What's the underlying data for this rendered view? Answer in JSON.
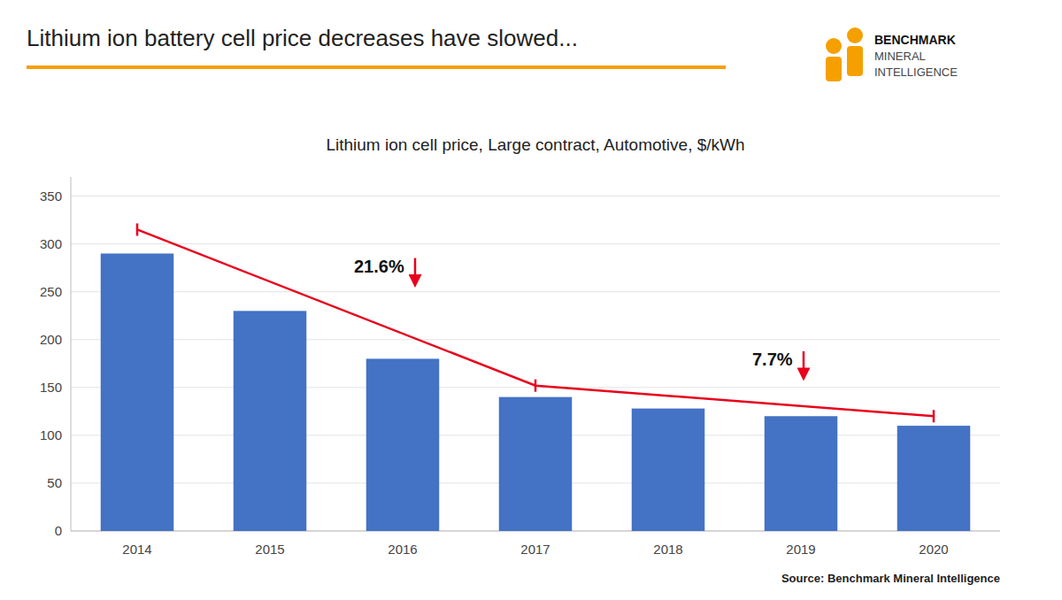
{
  "chart_data": {
    "type": "bar",
    "title": "Lithium ion battery cell price decreases have slowed...",
    "subtitle": "Lithium ion cell price, Large contract, Automotive, $/kWh",
    "source": "Source: Benchmark Mineral Intelligence",
    "logo_text": [
      "BENCHMARK",
      "MINERAL",
      "INTELLIGENCE"
    ],
    "logo_color": "#F5A000",
    "categories": [
      "2014",
      "2015",
      "2016",
      "2017",
      "2018",
      "2019",
      "2020"
    ],
    "values": [
      290,
      230,
      180,
      140,
      128,
      120,
      110
    ],
    "color": "#4472C4",
    "line": {
      "categories": [
        "2014",
        "2017",
        "2020"
      ],
      "values": [
        315,
        152,
        120
      ],
      "color": "#E8001C"
    },
    "annotations": [
      {
        "text": "21.6%"
      },
      {
        "text": "7.7%"
      }
    ],
    "ylim": [
      0,
      370
    ],
    "yticks": [
      0,
      50,
      100,
      150,
      200,
      250,
      300,
      350
    ],
    "grid": true
  }
}
